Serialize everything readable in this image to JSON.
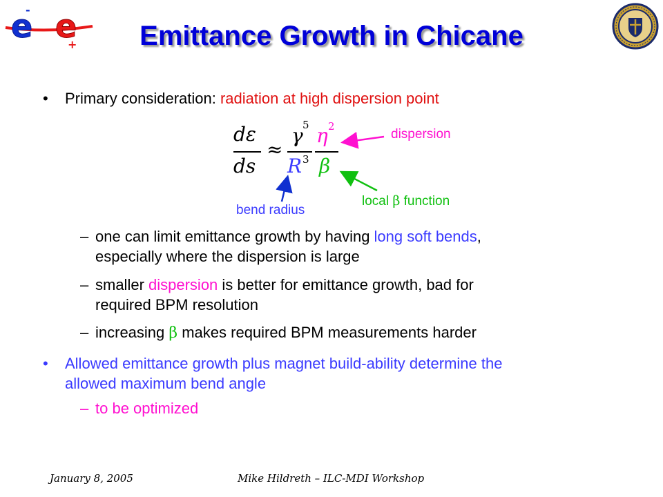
{
  "title": "Emittance Growth in Chicane",
  "logo_left": {
    "letters": [
      "e",
      "e"
    ],
    "charges": [
      "-",
      "+"
    ],
    "colors": {
      "blue": "#1030d0",
      "red": "#e81818"
    }
  },
  "logo_right": {
    "text": "UNIVERSITY OF NOTRE DAME",
    "colors": {
      "navy": "#1a2a6b",
      "gold": "#c8a032"
    }
  },
  "bullet1": {
    "marker": "•",
    "lead": "Primary consideration: ",
    "highlight": "radiation at high dispersion point"
  },
  "equation": {
    "num_left": "dε",
    "den_left": "ds",
    "approx": "≈",
    "num_mid": "γ",
    "num_mid_exp": "5",
    "den_mid": "R",
    "den_mid_exp": "3",
    "num_right": "η",
    "num_right_exp": "2",
    "den_right": "β"
  },
  "annotations": {
    "dispersion": "dispersion",
    "local_pre": "local ",
    "local_beta": "β",
    "local_post": " function",
    "bend_radius": "bend radius",
    "colors": {
      "dispersion": "#ff10d0",
      "local": "#10c010",
      "bend": "#3a3aff"
    }
  },
  "sub1": {
    "dash": "–",
    "line1_a": "one can limit emittance growth by having ",
    "line1_b": "long soft bends",
    "line1_c": ",",
    "line2": "especially where the dispersion is large"
  },
  "sub2": {
    "dash": "–",
    "line1_a": "smaller ",
    "line1_b": "dispersion",
    "line1_c": " is better for emittance growth, bad for",
    "line2": "required BPM resolution"
  },
  "sub3": {
    "dash": "–",
    "a": "increasing ",
    "beta": "β",
    "c": " makes required BPM measurements harder"
  },
  "bullet2": {
    "marker": "•",
    "line1": "Allowed emittance growth plus magnet build-ability determine the",
    "line2": "allowed maximum bend angle"
  },
  "sub4": {
    "dash": "–",
    "text": "to be optimized"
  },
  "footer": {
    "date": "January 8, 2005",
    "author": "Mike Hildreth – ILC-MDI Workshop"
  }
}
